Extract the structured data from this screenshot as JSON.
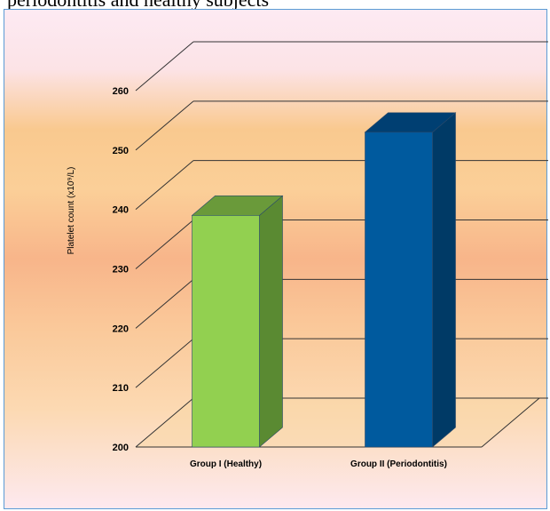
{
  "caption": "periodontitis and healthy subjects",
  "chart_data": {
    "type": "bar",
    "style": "3d",
    "categories": [
      "Group I (Healthy)",
      "Group II (Periodontitis)"
    ],
    "values": [
      239,
      253
    ],
    "ylabel": "Platelet count (x10⁹/L)",
    "ylim": [
      200,
      260
    ],
    "yticks": [
      200,
      210,
      220,
      230,
      240,
      250,
      260
    ],
    "grid": true,
    "colors": {
      "front": [
        "#92d050",
        "#005a9e"
      ],
      "top": [
        "#6a9a3a",
        "#003f72"
      ],
      "side": [
        "#5a8a32",
        "#003a66"
      ]
    }
  }
}
